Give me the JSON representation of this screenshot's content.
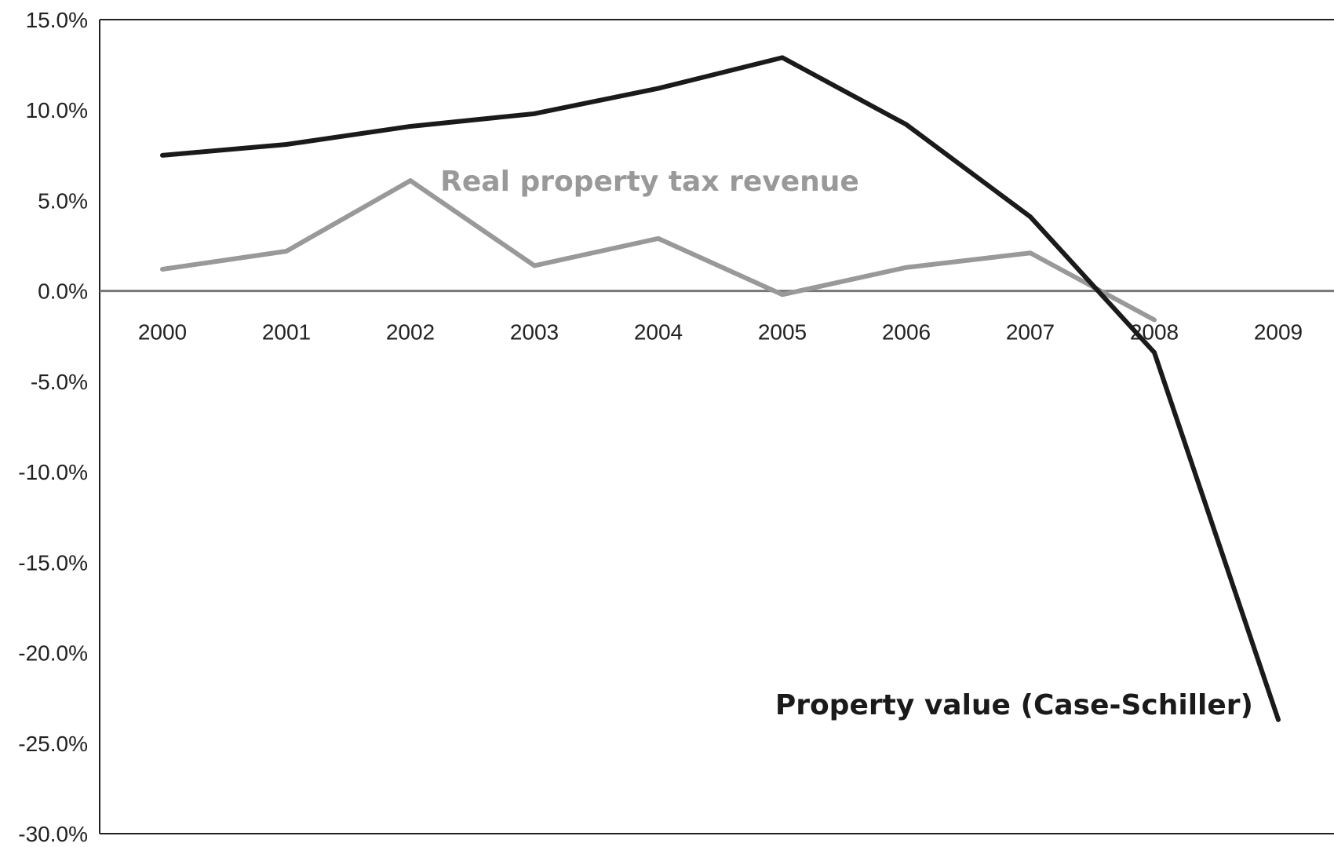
{
  "chart_data": {
    "type": "line",
    "title": "",
    "xlabel": "",
    "ylabel": "",
    "x_categories": [
      "2000",
      "2001",
      "2002",
      "2003",
      "2004",
      "2005",
      "2006",
      "2007",
      "2008",
      "2009"
    ],
    "y_ticks": [
      "15.0%",
      "10.0%",
      "5.0%",
      "0.0%",
      "-5.0%",
      "-10.0%",
      "-15.0%",
      "-20.0%",
      "-25.0%",
      "-30.0%"
    ],
    "ylim": [
      -30,
      15
    ],
    "y_unit": "%",
    "grid": false,
    "series": [
      {
        "name": "Property value (Case-Schiller)",
        "color": "#1a1a1a",
        "values": [
          7.5,
          8.1,
          9.1,
          9.8,
          11.2,
          12.9,
          9.2,
          4.1,
          -3.4,
          -23.7
        ]
      },
      {
        "name": "Real property tax revenue",
        "color": "#999999",
        "values": [
          1.2,
          2.2,
          6.1,
          1.4,
          2.9,
          -0.2,
          1.3,
          2.1,
          -1.6
        ]
      }
    ]
  }
}
